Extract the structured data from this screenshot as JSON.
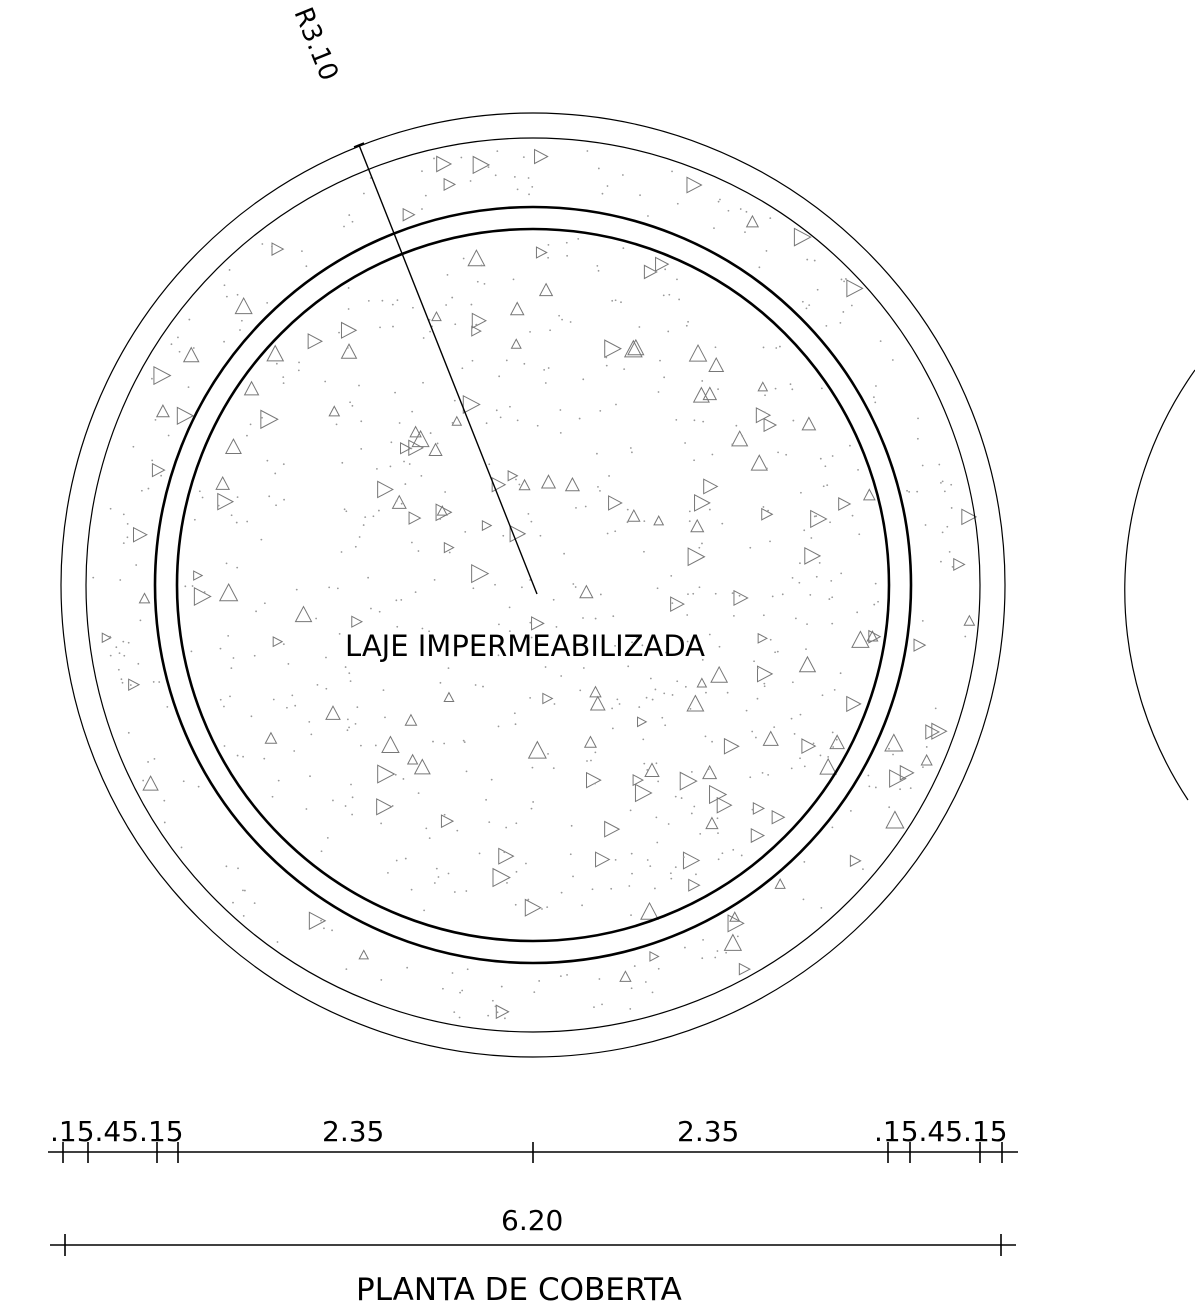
{
  "drawing": {
    "title": "PLANTA DE COBERTA",
    "center_label": "LAJE IMPERMEABILIZADA",
    "radius_label": "R3.10"
  },
  "dimensions": {
    "left_small": ".15.45.15",
    "left_main": "2.35",
    "right_main": "2.35",
    "right_small": ".15.45.15",
    "overall": "6.20"
  }
}
